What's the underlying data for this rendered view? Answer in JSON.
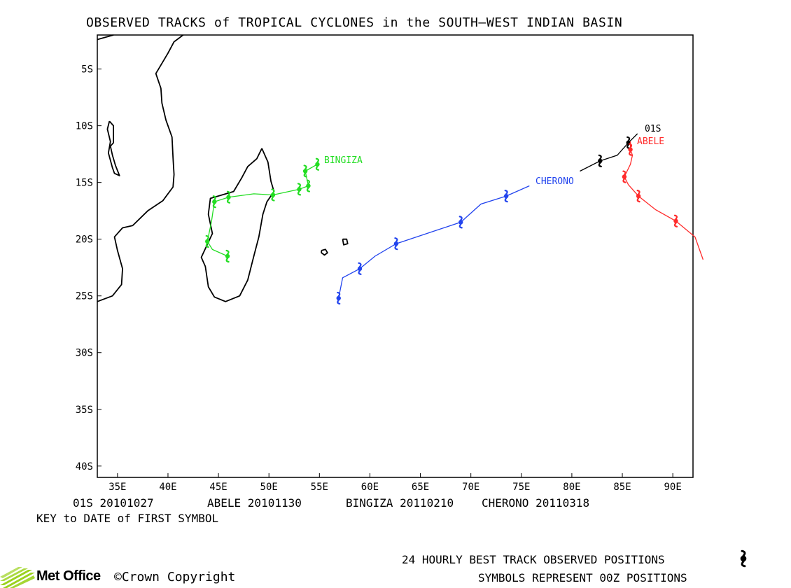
{
  "title": "OBSERVED TRACKS of TROPICAL CYCLONES in the SOUTH–WEST INDIAN BASIN",
  "map": {
    "lon_range": [
      33,
      92
    ],
    "lat_range": [
      -41,
      -2
    ],
    "lat_tick_labels": [
      "5S",
      "10S",
      "15S",
      "20S",
      "25S",
      "30S",
      "35S",
      "40S"
    ],
    "lon_tick_labels": [
      "35E",
      "40E",
      "45E",
      "50E",
      "55E",
      "60E",
      "65E",
      "70E",
      "75E",
      "80E",
      "85E",
      "90E"
    ]
  },
  "storms": [
    {
      "name": "01S",
      "label": "01S",
      "first_symbol_date": "20101027",
      "color": "#000000",
      "track": [
        [
          80.8,
          -14.0
        ],
        [
          82.8,
          -13.1
        ],
        [
          84.5,
          -12.6
        ],
        [
          85.6,
          -11.5
        ],
        [
          86.5,
          -10.7
        ]
      ],
      "symbols": [
        [
          82.8,
          -13.1
        ],
        [
          85.6,
          -11.5
        ]
      ]
    },
    {
      "name": "ABELE",
      "label": "ABELE",
      "first_symbol_date": "20101130",
      "color": "#ff2b2b",
      "track": [
        [
          85.8,
          -11.4
        ],
        [
          85.8,
          -12.1
        ],
        [
          86.0,
          -12.6
        ],
        [
          85.8,
          -13.4
        ],
        [
          85.2,
          -14.5
        ],
        [
          85.6,
          -15.2
        ],
        [
          86.6,
          -16.2
        ],
        [
          88.3,
          -17.4
        ],
        [
          90.3,
          -18.4
        ],
        [
          92.2,
          -19.8
        ],
        [
          93.0,
          -21.8
        ]
      ],
      "symbols": [
        [
          85.8,
          -12.1
        ],
        [
          85.2,
          -14.5
        ],
        [
          86.6,
          -16.2
        ],
        [
          90.3,
          -18.4
        ]
      ]
    },
    {
      "name": "BINGIZA",
      "label": "BINGIZA",
      "first_symbol_date": "20110210",
      "color": "#22dd22",
      "track": [
        [
          54.8,
          -13.4
        ],
        [
          53.6,
          -14.0
        ],
        [
          53.9,
          -15.3
        ],
        [
          53.0,
          -15.6
        ],
        [
          50.4,
          -16.1
        ],
        [
          48.5,
          -16.0
        ],
        [
          46.0,
          -16.3
        ],
        [
          44.6,
          -16.7
        ],
        [
          44.3,
          -18.5
        ],
        [
          43.9,
          -20.2
        ],
        [
          44.4,
          -20.9
        ],
        [
          45.9,
          -21.5
        ]
      ],
      "symbols": [
        [
          54.8,
          -13.4
        ],
        [
          53.6,
          -14.0
        ],
        [
          53.9,
          -15.3
        ],
        [
          53.0,
          -15.6
        ],
        [
          50.4,
          -16.1
        ],
        [
          46.0,
          -16.3
        ],
        [
          44.6,
          -16.7
        ],
        [
          43.9,
          -20.2
        ],
        [
          45.9,
          -21.5
        ]
      ]
    },
    {
      "name": "CHERONO",
      "label": "CHERONO",
      "first_symbol_date": "20110318",
      "color": "#2244ee",
      "track": [
        [
          75.8,
          -15.3
        ],
        [
          73.5,
          -16.2
        ],
        [
          71.0,
          -16.9
        ],
        [
          69.0,
          -18.5
        ],
        [
          62.6,
          -20.4
        ],
        [
          60.5,
          -21.5
        ],
        [
          59.0,
          -22.6
        ],
        [
          57.3,
          -23.4
        ],
        [
          56.9,
          -25.2
        ]
      ],
      "symbols": [
        [
          73.5,
          -16.2
        ],
        [
          69.0,
          -18.5
        ],
        [
          62.6,
          -20.4
        ],
        [
          59.0,
          -22.6
        ],
        [
          56.9,
          -25.2
        ]
      ]
    }
  ],
  "key": {
    "entries": [
      {
        "name": "01S",
        "date": "20101027"
      },
      {
        "name": "ABELE",
        "date": "20101130"
      },
      {
        "name": "BINGIZA",
        "date": "20110210"
      },
      {
        "name": "CHERONO",
        "date": "20110318"
      }
    ],
    "note": "KEY to DATE of FIRST SYMBOL"
  },
  "legend": {
    "line1": "24 HOURLY BEST TRACK OBSERVED POSITIONS",
    "line2": "SYMBOLS REPRESENT 00Z POSITIONS",
    "symbol_icon": "cyclone-symbol-icon"
  },
  "footer": {
    "brand": "Met Office",
    "copyright": "©Crown Copyright"
  }
}
